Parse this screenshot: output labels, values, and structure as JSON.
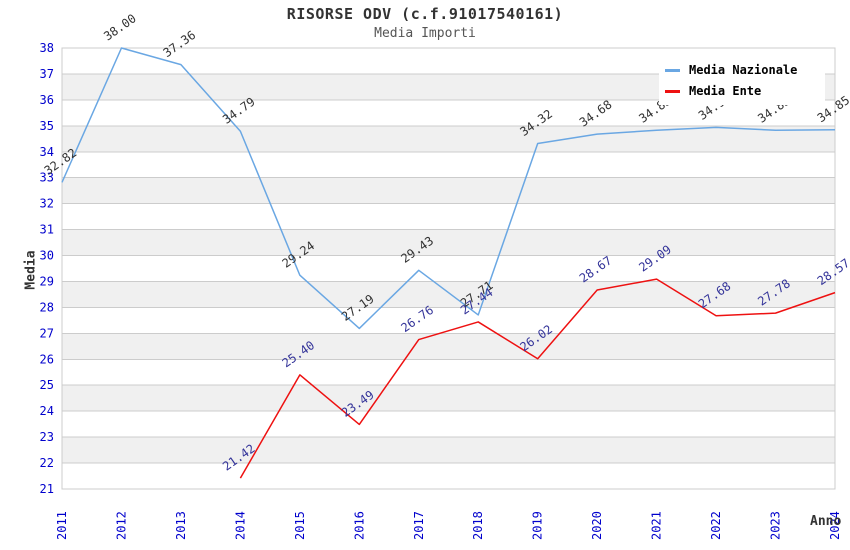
{
  "chart": {
    "title": "RISORSE ODV (c.f.91017540161)",
    "subtitle": "Media Importi"
  },
  "chart_data": {
    "type": "line",
    "title": "RISORSE ODV (c.f.91017540161)",
    "subtitle": "Media Importi",
    "xlabel": "Anno",
    "ylabel": "Media",
    "x": [
      "2011",
      "2012",
      "2013",
      "2014",
      "2015",
      "2016",
      "2017",
      "2018",
      "2019",
      "2020",
      "2021",
      "2022",
      "2023",
      "2024"
    ],
    "ylim": [
      21,
      38
    ],
    "ytick_step": 1,
    "grid": true,
    "banded_background": true,
    "legend_position": "top-right",
    "series": [
      {
        "name": "Media Nazionale",
        "color": "#6aa7e3",
        "label_color": "#333333",
        "values": [
          32.82,
          38.0,
          37.36,
          34.79,
          29.24,
          27.19,
          29.43,
          27.71,
          34.32,
          34.68,
          34.83,
          34.94,
          34.83,
          34.85
        ]
      },
      {
        "name": "Media Ente",
        "color": "#ee1111",
        "label_color": "#333399",
        "values": [
          null,
          null,
          null,
          21.42,
          25.4,
          23.49,
          26.76,
          27.44,
          26.02,
          28.67,
          29.09,
          27.68,
          27.78,
          28.57
        ]
      }
    ]
  },
  "colors": {
    "axis_tick_text": "#0000cc",
    "grid_line": "#cccccc",
    "band_fill": "#f0f0f0",
    "background": "#ffffff",
    "title_text": "#333333",
    "subtitle_text": "#555555",
    "legend_text": "#000000"
  }
}
